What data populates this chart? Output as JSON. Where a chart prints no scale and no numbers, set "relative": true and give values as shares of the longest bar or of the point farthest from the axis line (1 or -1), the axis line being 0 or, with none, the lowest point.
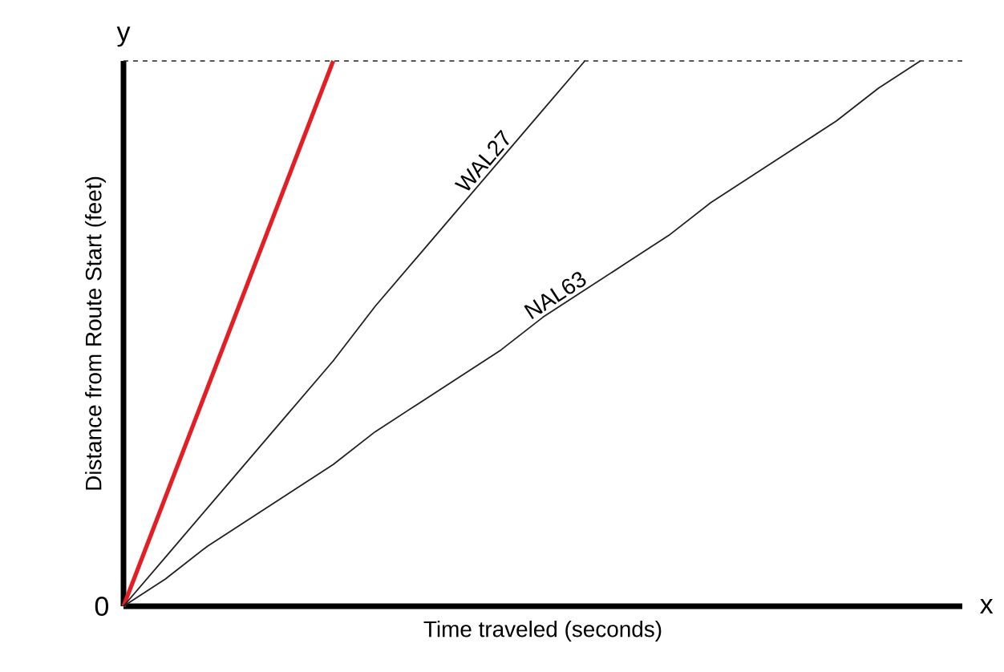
{
  "chart_data": {
    "type": "line",
    "relative": true,
    "xlabel": "Time traveled (seconds)",
    "ylabel": "Distance from Route Start (feet)",
    "categories": [
      null,
      null,
      null,
      null,
      null,
      null,
      null,
      null,
      null,
      null,
      null,
      null,
      null,
      null,
      null,
      null,
      null,
      null,
      null,
      null,
      null
    ],
    "series": [
      {
        "color": "#e31e24",
        "values": [
          0,
          0.2,
          0.4,
          0.6,
          0.8,
          1,
          null,
          null,
          null,
          null,
          null,
          null,
          null,
          null,
          null,
          null,
          null,
          null,
          null,
          null,
          null
        ]
      },
      {
        "name": "WAL27",
        "color": "#231f20",
        "values": [
          0,
          0.09,
          0.18,
          0.27,
          0.36,
          0.45,
          0.55,
          0.64,
          0.73,
          0.82,
          0.91,
          1,
          null,
          null,
          null,
          null,
          null,
          null,
          null,
          null,
          null
        ]
      },
      {
        "name": "NAL63",
        "color": "#231f20",
        "values": [
          0,
          0.05,
          0.11,
          0.16,
          0.21,
          0.26,
          0.32,
          0.37,
          0.42,
          0.47,
          0.53,
          0.58,
          0.63,
          0.68,
          0.74,
          0.79,
          0.84,
          0.89,
          0.95,
          1,
          null
        ]
      }
    ],
    "ref_lines": [
      {
        "axis": "y",
        "value": 1,
        "line_style": "dashed",
        "color": "#231f20"
      }
    ],
    "annotations": [
      "x",
      "y",
      "0"
    ]
  }
}
